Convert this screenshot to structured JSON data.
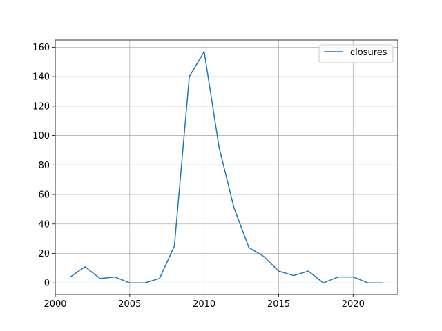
{
  "chart_data": {
    "type": "line",
    "title": "",
    "xlabel": "",
    "ylabel": "",
    "xlim": [
      2000,
      2023
    ],
    "ylim": [
      -7.85,
      164.85
    ],
    "xticks": [
      2000,
      2005,
      2010,
      2015,
      2020
    ],
    "yticks": [
      0,
      20,
      40,
      60,
      80,
      100,
      120,
      140,
      160
    ],
    "grid": true,
    "legend": {
      "placement": "top-right"
    },
    "series": [
      {
        "name": "closures",
        "color": "#1f77b4",
        "x": [
          2001,
          2002,
          2003,
          2004,
          2005,
          2006,
          2007,
          2008,
          2009,
          2010,
          2011,
          2012,
          2013,
          2014,
          2015,
          2016,
          2017,
          2018,
          2019,
          2020,
          2021,
          2022
        ],
        "y": [
          4,
          11,
          3,
          4,
          0,
          0,
          3,
          25,
          140,
          157,
          92,
          51,
          24,
          18,
          8,
          5,
          8,
          0,
          4,
          4,
          0,
          0
        ]
      }
    ]
  }
}
